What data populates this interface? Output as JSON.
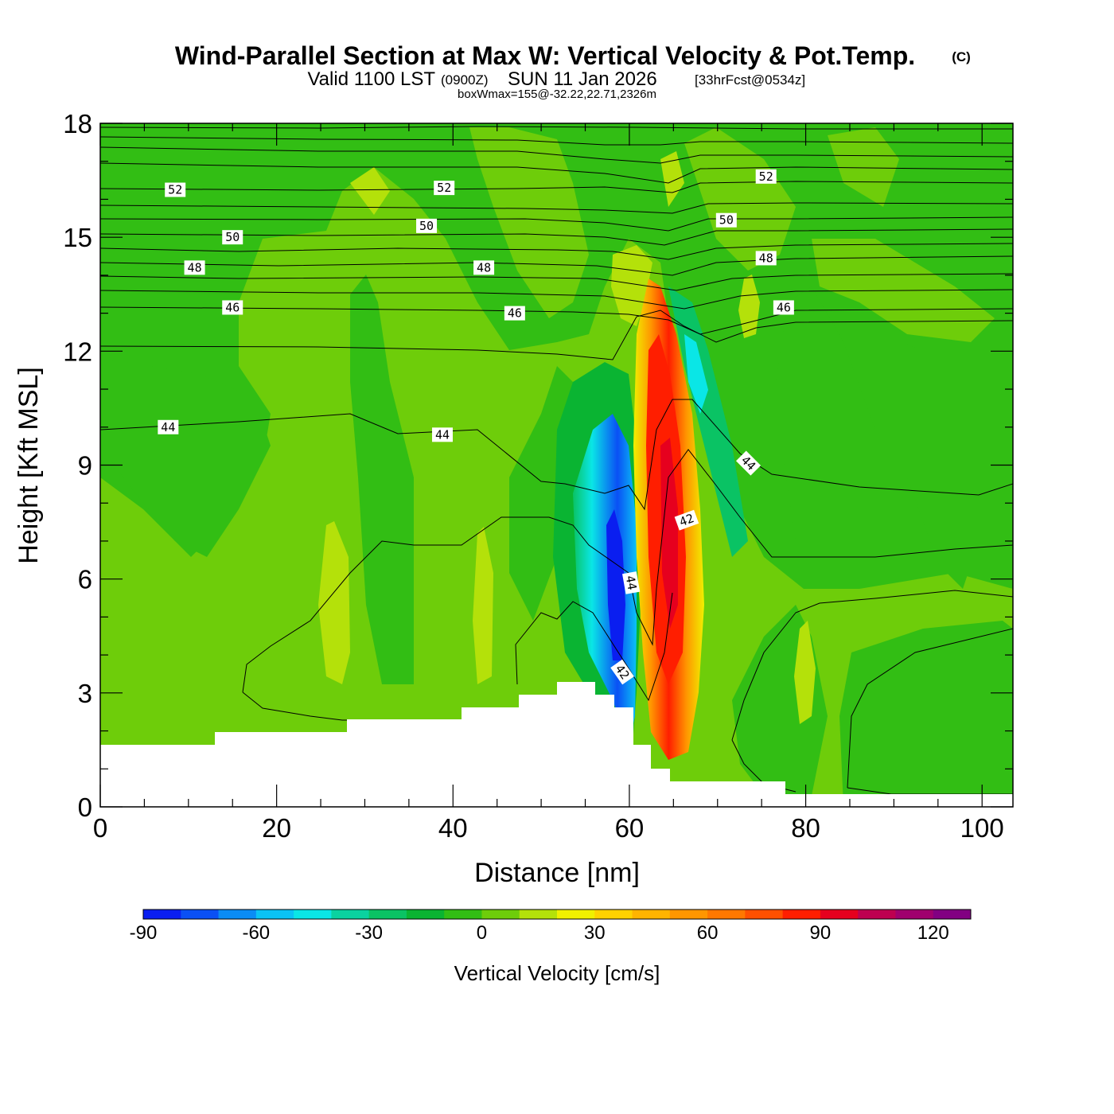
{
  "title": {
    "main": "Wind-Parallel Section at Max W: Vertical Velocity & Pot.Temp.",
    "copyright": "(C)",
    "valid_a": "Valid 1100 LST",
    "valid_z": "(0900Z)",
    "valid_b": "SUN 11 Jan 2026",
    "forecast": "[33hrFcst@0534z]",
    "boxw": "boxWmax=155@-32.22,22.71,2326m"
  },
  "chart_data": {
    "type": "heatmap",
    "title": "Wind-Parallel Section at Max W: Vertical Velocity & Pot.Temp.",
    "xlabel": "Distance [nm]",
    "ylabel": "Height [Kft MSL]",
    "xlim": [
      0,
      103.5
    ],
    "ylim": [
      0,
      18
    ],
    "xticks": [
      0,
      20,
      40,
      60,
      80,
      100
    ],
    "yticks": [
      0,
      3,
      6,
      9,
      12,
      15,
      18
    ],
    "colorbar": {
      "label": "Vertical Velocity [cm/s]",
      "levels": [
        -90,
        -80,
        -70,
        -60,
        -50,
        -40,
        -30,
        -20,
        -10,
        0,
        10,
        20,
        30,
        40,
        50,
        60,
        70,
        80,
        90,
        100,
        110,
        120,
        130
      ],
      "tick_values": [
        -90,
        -60,
        -30,
        0,
        30,
        60,
        90,
        120
      ],
      "colors": [
        "#0a1ef0",
        "#0a50f5",
        "#0a8cf5",
        "#0ac3f5",
        "#0ae6e6",
        "#0ad2a0",
        "#0ac364",
        "#0ab432",
        "#32be14",
        "#6ecd0a",
        "#b4e10a",
        "#f0f000",
        "#ffd200",
        "#ffb400",
        "#ff9600",
        "#ff7800",
        "#ff5000",
        "#ff1e00",
        "#e6001e",
        "#be0050",
        "#a0006e",
        "#820082"
      ]
    },
    "terrain_profile_kft": [
      [
        0,
        1.65
      ],
      [
        13,
        1.65
      ],
      [
        13,
        1.95
      ],
      [
        28,
        1.95
      ],
      [
        28,
        2.25
      ],
      [
        41,
        2.25
      ],
      [
        41,
        2.6
      ],
      [
        47.5,
        2.6
      ],
      [
        47.5,
        2.9
      ],
      [
        52,
        2.9
      ],
      [
        52,
        3.25
      ],
      [
        56,
        3.25
      ],
      [
        56,
        2.95
      ],
      [
        58.5,
        2.95
      ],
      [
        58.5,
        2.6
      ],
      [
        60.5,
        2.6
      ],
      [
        60.5,
        1.65
      ],
      [
        62.5,
        1.65
      ],
      [
        62.5,
        1.0
      ],
      [
        64.5,
        1.0
      ],
      [
        64.5,
        0.7
      ],
      [
        78,
        0.7
      ],
      [
        78,
        0.35
      ],
      [
        103.5,
        0.35
      ]
    ],
    "wmax_feature": {
      "updraft_peak_cm_s": 120,
      "updraft_x_nm": 64.5,
      "updraft_kft": 6.5,
      "downdraft_min_cm_s": -80,
      "downdraft_x_nm": 58.5,
      "downdraft_kft": 5
    },
    "theta_contour_labels": [
      {
        "label": "52",
        "x": 8.5,
        "y": 16.25,
        "angle": 0
      },
      {
        "label": "52",
        "x": 39,
        "y": 16.3,
        "angle": 0
      },
      {
        "label": "52",
        "x": 75.5,
        "y": 16.6,
        "angle": 0
      },
      {
        "label": "50",
        "x": 15,
        "y": 15.0,
        "angle": 0
      },
      {
        "label": "50",
        "x": 37,
        "y": 15.3,
        "angle": 0
      },
      {
        "label": "50",
        "x": 71,
        "y": 15.45,
        "angle": 0
      },
      {
        "label": "48",
        "x": 10.7,
        "y": 14.2,
        "angle": 0
      },
      {
        "label": "48",
        "x": 43.5,
        "y": 14.2,
        "angle": 0
      },
      {
        "label": "48",
        "x": 75.5,
        "y": 14.45,
        "angle": 0
      },
      {
        "label": "46",
        "x": 15,
        "y": 13.15,
        "angle": 0
      },
      {
        "label": "46",
        "x": 47,
        "y": 13.0,
        "angle": 0
      },
      {
        "label": "46",
        "x": 77.5,
        "y": 13.15,
        "angle": 0
      },
      {
        "label": "44",
        "x": 7.7,
        "y": 10.0,
        "angle": 0
      },
      {
        "label": "44",
        "x": 38.8,
        "y": 9.8,
        "angle": 0
      },
      {
        "label": "44",
        "x": 73.5,
        "y": 9.05,
        "angle": 45
      },
      {
        "label": "44",
        "x": 60.2,
        "y": 5.9,
        "angle": 80
      },
      {
        "label": "42",
        "x": 66.5,
        "y": 7.55,
        "angle": -20
      },
      {
        "label": "42",
        "x": 59.2,
        "y": 3.55,
        "angle": 55
      }
    ]
  }
}
